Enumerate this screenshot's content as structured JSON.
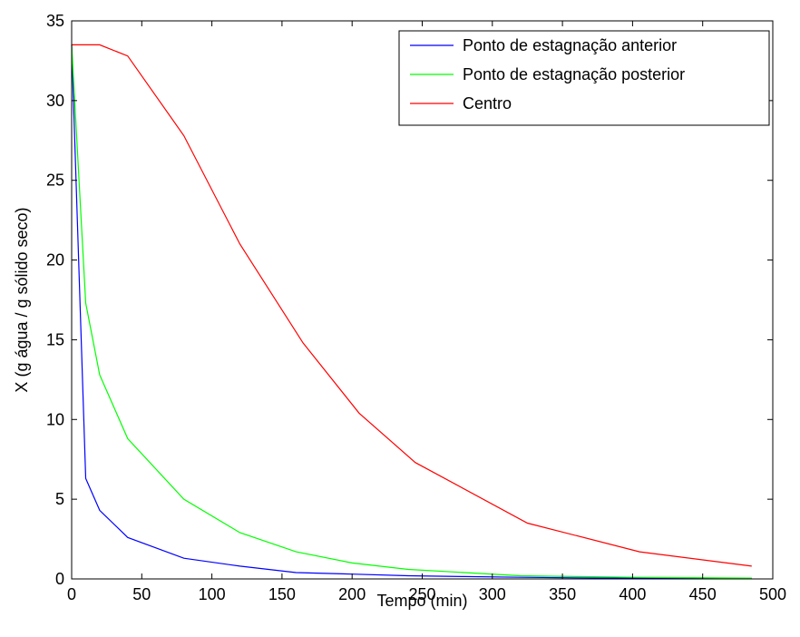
{
  "chart_data": {
    "type": "line",
    "title": "",
    "xlabel": "Tempo (min)",
    "ylabel": "X (g água / g sólido seco)",
    "xlim": [
      0,
      500
    ],
    "ylim": [
      0,
      35
    ],
    "xticks": [
      0,
      50,
      100,
      150,
      200,
      250,
      300,
      350,
      400,
      450,
      500
    ],
    "yticks": [
      0,
      5,
      10,
      15,
      20,
      25,
      30,
      35
    ],
    "grid": false,
    "legend_position": "top-right",
    "series": [
      {
        "name": "Ponto de estagnação anterior",
        "color": "#0000ff",
        "x": [
          0,
          10,
          20,
          40,
          80,
          120,
          160,
          200,
          240,
          280,
          320,
          360,
          400,
          440,
          485
        ],
        "y": [
          33.5,
          6.3,
          4.3,
          2.6,
          1.3,
          0.8,
          0.4,
          0.3,
          0.2,
          0.15,
          0.1,
          0.07,
          0.05,
          0.04,
          0.03
        ]
      },
      {
        "name": "Ponto de estagnação posterior",
        "color": "#00ff00",
        "x": [
          0,
          10,
          20,
          40,
          80,
          120,
          160,
          200,
          240,
          280,
          320,
          360,
          400,
          440,
          485
        ],
        "y": [
          33.5,
          17.3,
          12.8,
          8.8,
          5.0,
          2.9,
          1.7,
          1.0,
          0.6,
          0.4,
          0.2,
          0.15,
          0.1,
          0.08,
          0.05
        ]
      },
      {
        "name": "Centro",
        "color": "#ff0000",
        "x": [
          0,
          20,
          40,
          80,
          120,
          165,
          205,
          245,
          325,
          405,
          485
        ],
        "y": [
          33.5,
          33.5,
          32.8,
          27.8,
          21.0,
          14.8,
          10.4,
          7.3,
          3.5,
          1.7,
          0.8
        ]
      }
    ]
  }
}
